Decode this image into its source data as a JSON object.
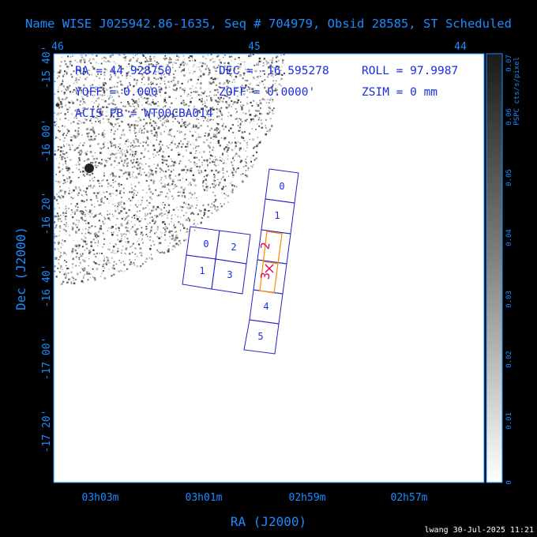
{
  "header": {
    "title": "Name WISE J025942.86-1635, Seq # 704979, Obsid 28585, ST Scheduled"
  },
  "info": {
    "ra": "RA = 44.928750",
    "dec": "DEC = -16.595278",
    "roll": "ROLL = 97.9987",
    "yoff": "YOFF =  0.000'",
    "zoff": "ZOFF =  0.0000'",
    "zsim": "ZSIM = 0 mm",
    "acis_pb": "ACIS PB = WT00CBA014"
  },
  "footer": {
    "credit": "lwang 30-Jul-2025 11:21"
  },
  "colors": {
    "background": "#000000",
    "plot_bg": "#ffffff",
    "axis": "#1a8cff",
    "text_blue": "#1a2ee6",
    "chip_outline": "#2222cc",
    "highlight_chip": "#ff8800",
    "highlight_label": "#dd0066",
    "image_gray": "#555555"
  },
  "chart_data": {
    "type": "sky-field",
    "xlabel": "RA (J2000)",
    "ylabel": "Dec (J2000)",
    "x_ticks_bottom": [
      "03h03m",
      "03h01m",
      "02h59m",
      "02h57m"
    ],
    "x_ticks_top": [
      "46",
      "45",
      "44"
    ],
    "y_ticks_left": [
      "-15 40'",
      "-16 00'",
      "-16 20'",
      "-16 40'",
      "-17 00'",
      "-17 20'"
    ],
    "colorbar": {
      "label": "PSPC cts/s/pixel",
      "ticks": [
        "0",
        "0.01",
        "0.02",
        "0.03",
        "0.04",
        "0.05",
        "0.06",
        "0.07"
      ]
    },
    "target": {
      "ra_deg": 44.92875,
      "dec_deg": -16.595278,
      "marker": "x"
    },
    "acis_i": {
      "chips": [
        "0",
        "1",
        "2",
        "3"
      ]
    },
    "acis_s": {
      "chips": [
        "0",
        "1",
        "2",
        "3",
        "4",
        "5"
      ],
      "highlighted": [
        "2",
        "3"
      ]
    }
  }
}
